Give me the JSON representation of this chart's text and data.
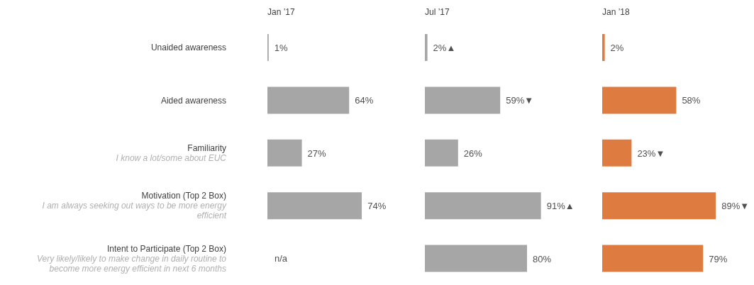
{
  "chart_data": [
    {
      "type": "bar",
      "orientation": "horizontal",
      "title": "Jan ’17",
      "categories": [
        "Unaided awareness",
        "Aided awareness",
        "Familiarity\nI know a lot/some about EUC",
        "Motivation (Top 2 Box)\nI am always seeking out ways to be more energy efficient",
        "Intent to Participate (Top 2 Box)\nVery likely/likely to make change in daily routine to become more energy efficient in next 6 months"
      ],
      "values": [
        1,
        64,
        27,
        74,
        null
      ],
      "value_labels": [
        "1%",
        "64%",
        "27%",
        "74%",
        "n/a"
      ],
      "color": "#a6a6a6",
      "tick_labels": "y"
    },
    {
      "type": "bar",
      "orientation": "horizontal",
      "title": "Jul ’17",
      "categories": [
        null,
        null,
        null,
        null,
        null
      ],
      "values": [
        2,
        59,
        26,
        91,
        80
      ],
      "value_labels": [
        "2%▲",
        "59%▼",
        "26%",
        "91%▲",
        "80%"
      ],
      "color": "#a6a6a6",
      "tick_labels": false
    },
    {
      "type": "bar",
      "orientation": "horizontal",
      "title": "Jan ’18",
      "categories": [
        null,
        null,
        null,
        null,
        null
      ],
      "values": [
        2,
        58,
        23,
        89,
        79
      ],
      "value_labels": [
        "2%",
        "58%",
        "23%▼",
        "89%▼",
        "79%"
      ],
      "color": "#dd7b40",
      "tick_labels": false
    }
  ]
}
